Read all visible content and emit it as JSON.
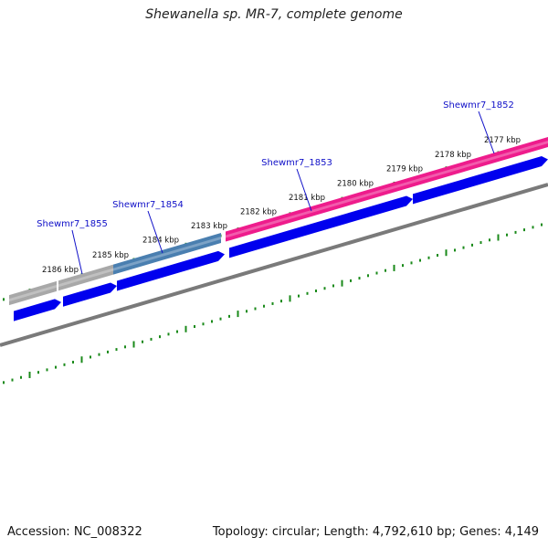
{
  "title": "Shewanella sp. MR-7, complete genome",
  "footer": {
    "accession": "Accession: NC_008322",
    "summary": "Topology: circular; Length: 4,792,610 bp; Genes: 4,149"
  },
  "colors": {
    "background": "#ffffff",
    "tick_green": "#1a8a1a",
    "backbone_gray": "#7a7a7a",
    "gene_blue": "#0000ee",
    "feature_pink": "#ee1c8c",
    "feature_steelblue": "#4a7fb0",
    "feature_gray": "#a8a8a8",
    "label_blue": "#1010c8"
  },
  "scale_ticks": [
    {
      "label": "2186 kbp"
    },
    {
      "label": "2185 kbp"
    },
    {
      "label": "2184 kbp"
    },
    {
      "label": "2183 kbp"
    },
    {
      "label": "2182 kbp"
    },
    {
      "label": "2181 kbp"
    },
    {
      "label": "2180 kbp"
    },
    {
      "label": "2179 kbp"
    },
    {
      "label": "2178 kbp"
    },
    {
      "label": "2177 kbp"
    }
  ],
  "gene_labels": [
    {
      "name": "Shewmr7_1855"
    },
    {
      "name": "Shewmr7_1854"
    },
    {
      "name": "Shewmr7_1853"
    },
    {
      "name": "Shewmr7_1852"
    }
  ],
  "features": [
    {
      "kind": "gray",
      "name": "feature-gray-a"
    },
    {
      "kind": "gray",
      "name": "feature-gray-b"
    },
    {
      "kind": "steelblue",
      "name": "feature-steelblue"
    },
    {
      "kind": "pink",
      "name": "feature-pink"
    }
  ],
  "genes": [
    {
      "name": "gene-arrow-1"
    },
    {
      "name": "gene-arrow-2"
    },
    {
      "name": "gene-arrow-3"
    },
    {
      "name": "gene-arrow-4"
    },
    {
      "name": "gene-arrow-5"
    }
  ]
}
